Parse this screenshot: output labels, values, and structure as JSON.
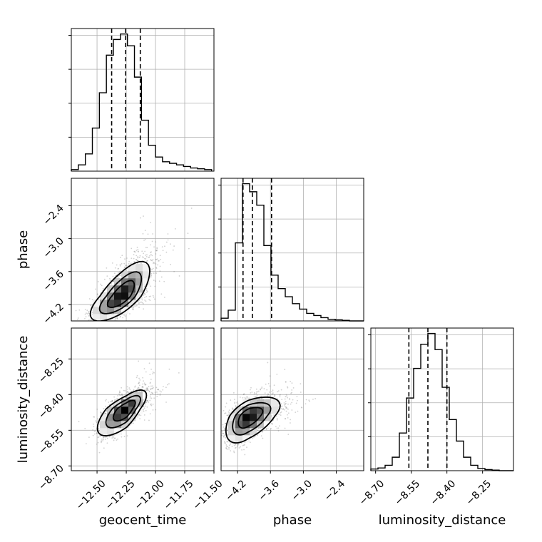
{
  "chart_data": {
    "type": "corner",
    "parameters": [
      {
        "name": "geocent_time",
        "label": "geocent_time",
        "range": [
          -12.72,
          -11.5
        ],
        "ticks": [
          -12.5,
          -12.25,
          -12.0,
          -11.75,
          -11.5
        ],
        "tick_labels": [
          "−12.50",
          "−12.25",
          "−12.00",
          "−11.75",
          "−11.50"
        ],
        "quantiles": [
          -12.375,
          -12.255,
          -12.13
        ],
        "hist_edges": [
          -12.72,
          -12.66,
          -12.6,
          -12.54,
          -12.48,
          -12.42,
          -12.36,
          -12.3,
          -12.24,
          -12.18,
          -12.12,
          -12.06,
          -12.0,
          -11.94,
          -11.88,
          -11.82,
          -11.76,
          -11.7,
          -11.64,
          -11.58,
          -11.52
        ],
        "hist_counts": [
          2,
          8,
          22,
          55,
          100,
          148,
          168,
          175,
          160,
          120,
          65,
          33,
          18,
          12,
          10,
          8,
          6,
          4,
          3,
          2
        ],
        "hist_ymax": 182
      },
      {
        "name": "phase",
        "label": "phase",
        "range": [
          -4.5,
          -1.9
        ],
        "ticks": [
          -4.2,
          -3.6,
          -3.0,
          -2.4
        ],
        "tick_labels": [
          "−4.2",
          "−3.6",
          "−3.0",
          "−2.4"
        ],
        "quantiles": [
          -4.1,
          -3.93,
          -3.58
        ],
        "hist_edges": [
          -4.5,
          -4.37,
          -4.24,
          -4.11,
          -3.98,
          -3.85,
          -3.72,
          -3.59,
          -3.46,
          -3.33,
          -3.2,
          -3.07,
          -2.94,
          -2.81,
          -2.68,
          -2.55,
          -2.42,
          -2.29,
          -2.16,
          -2.03,
          -1.9
        ],
        "hist_counts": [
          5,
          20,
          145,
          255,
          240,
          215,
          140,
          85,
          60,
          45,
          32,
          22,
          14,
          10,
          6,
          3,
          2,
          1,
          0,
          0
        ],
        "hist_ymax": 265
      },
      {
        "name": "luminosity_distance",
        "label": "luminosity_distance",
        "range": [
          -8.72,
          -8.12
        ],
        "ticks": [
          -8.7,
          -8.55,
          -8.4,
          -8.25
        ],
        "tick_labels": [
          "−8.70",
          "−8.55",
          "−8.40",
          "−8.25"
        ],
        "quantiles": [
          -8.56,
          -8.48,
          -8.4
        ],
        "hist_edges": [
          -8.72,
          -8.69,
          -8.66,
          -8.63,
          -8.6,
          -8.57,
          -8.54,
          -8.51,
          -8.48,
          -8.45,
          -8.42,
          -8.39,
          -8.36,
          -8.33,
          -8.3,
          -8.27,
          -8.24,
          -8.21,
          -8.18,
          -8.15,
          -8.12
        ],
        "hist_counts": [
          3,
          5,
          10,
          25,
          70,
          135,
          190,
          235,
          255,
          225,
          155,
          95,
          55,
          25,
          10,
          4,
          2,
          1,
          0,
          0
        ],
        "hist_ymax": 265
      }
    ],
    "pairs": [
      {
        "x": "geocent_time",
        "y": "phase",
        "mode": [
          -12.29,
          -4.05
        ],
        "spread": [
          0.13,
          0.22
        ],
        "correlation": 0.72,
        "skew": [
          0.9,
          1.4
        ]
      },
      {
        "x": "geocent_time",
        "y": "luminosity_distance",
        "mode": [
          -12.25,
          -8.46
        ],
        "spread": [
          0.12,
          0.055
        ],
        "correlation": 0.72,
        "skew": [
          0.7,
          0.7
        ]
      },
      {
        "x": "phase",
        "y": "luminosity_distance",
        "mode": [
          -4.0,
          -8.49
        ],
        "spread": [
          0.2,
          0.055
        ],
        "correlation": 0.55,
        "skew": [
          1.4,
          0.7
        ]
      }
    ],
    "contour_levels": [
      0.12,
      0.35,
      0.65
    ],
    "grid": true
  }
}
